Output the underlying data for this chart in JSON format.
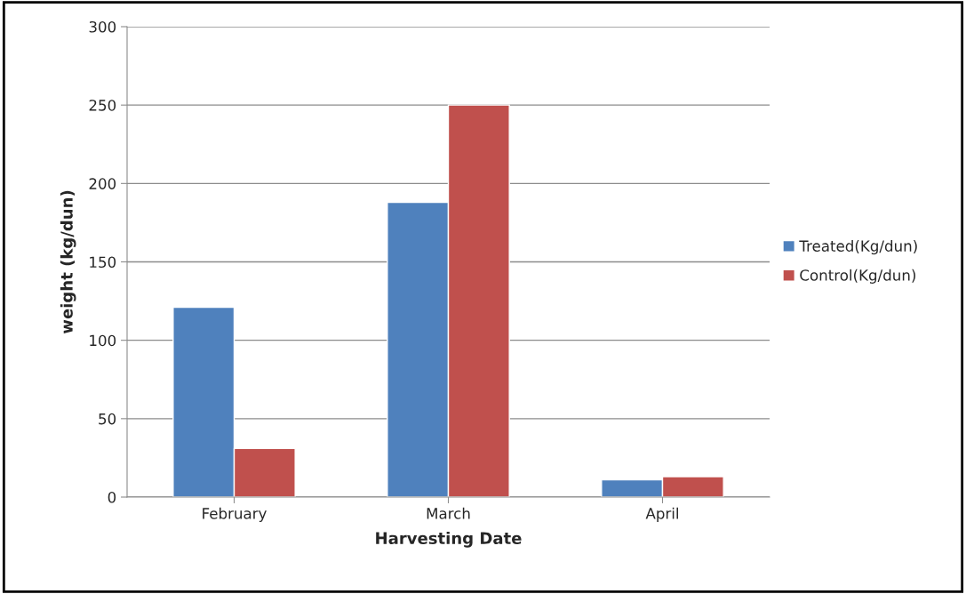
{
  "chart_data": {
    "type": "bar",
    "xlabel": "Harvesting Date",
    "ylabel": "weight (kg/dun)",
    "categories": [
      "February",
      "March",
      "April"
    ],
    "series": [
      {
        "name": "Treated(Kg/dun)",
        "color": "#4f81bd",
        "values": [
          121,
          188,
          11
        ]
      },
      {
        "name": "Control(Kg/dun)",
        "color": "#c0504d",
        "values": [
          31,
          250,
          13
        ]
      }
    ],
    "ylim": [
      0,
      300
    ],
    "yticks": [
      0,
      50,
      100,
      150,
      200,
      250,
      300
    ],
    "grid": "y",
    "legend": "right"
  }
}
